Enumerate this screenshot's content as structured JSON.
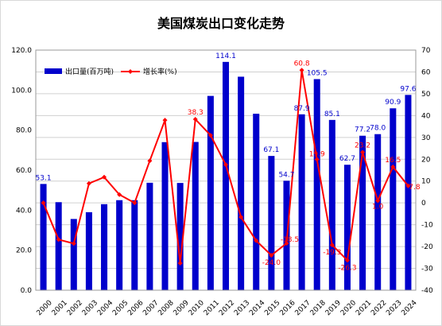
{
  "chart_data": {
    "type": "bar",
    "title": "美国煤炭出口变化走势",
    "categories": [
      "2000",
      "2001",
      "2002",
      "2003",
      "2004",
      "2005",
      "2006",
      "2007",
      "2008",
      "2009",
      "2010",
      "2011",
      "2012",
      "2013",
      "2014",
      "2015",
      "2016",
      "2017",
      "2018",
      "2019",
      "2020",
      "2021",
      "2022",
      "2023",
      "2024"
    ],
    "series": [
      {
        "name": "出口量(百万吨)",
        "type": "bar",
        "axis": "left",
        "color": "#0000cc",
        "values": [
          53.1,
          44.0,
          35.6,
          39.0,
          43.0,
          45.0,
          45.0,
          53.7,
          74.0,
          53.6,
          74.1,
          97.1,
          114.1,
          106.7,
          88.2,
          67.1,
          54.7,
          87.9,
          105.5,
          85.1,
          62.7,
          77.2,
          78.0,
          90.9,
          97.6
        ],
        "labels": {
          "0": "53.1",
          "12": "114.1",
          "15": "67.1",
          "16": "54.7",
          "17": "87.9",
          "18": "105.5",
          "19": "85.1",
          "20": "62.7",
          "21": "77.2",
          "22": "78.0",
          "23": "90.9",
          "24": "97.6"
        }
      },
      {
        "name": "增长率(%)",
        "type": "line",
        "axis": "right",
        "color": "#ff0000",
        "values": [
          0.0,
          -16.8,
          -18.6,
          8.9,
          11.8,
          3.8,
          0.0,
          19.3,
          37.9,
          -27.6,
          38.3,
          31.0,
          17.5,
          -6.5,
          -17.3,
          -24.0,
          -18.5,
          60.8,
          19.9,
          -19.3,
          -26.3,
          23.2,
          1.0,
          16.5,
          7.8
        ],
        "labels": {
          "10": "38.3",
          "15": "-24.0",
          "16": "-18.5",
          "17": "60.8",
          "18": "19.9",
          "19": "-19.3",
          "20": "-26.3",
          "21": "23.2",
          "22": "1.0",
          "23": "16.5",
          "24": "7.8"
        }
      }
    ],
    "ylim_left": [
      0,
      120
    ],
    "yticks_left": [
      "0.0",
      "20.0",
      "40.0",
      "60.0",
      "80.0",
      "100.0",
      "120.0"
    ],
    "ylim_right": [
      -40,
      70
    ],
    "yticks_right": [
      "-40",
      "-30",
      "-20",
      "-10",
      "0",
      "10",
      "20",
      "30",
      "40",
      "50",
      "60",
      "70"
    ],
    "grid": true,
    "legend": "top-left"
  }
}
